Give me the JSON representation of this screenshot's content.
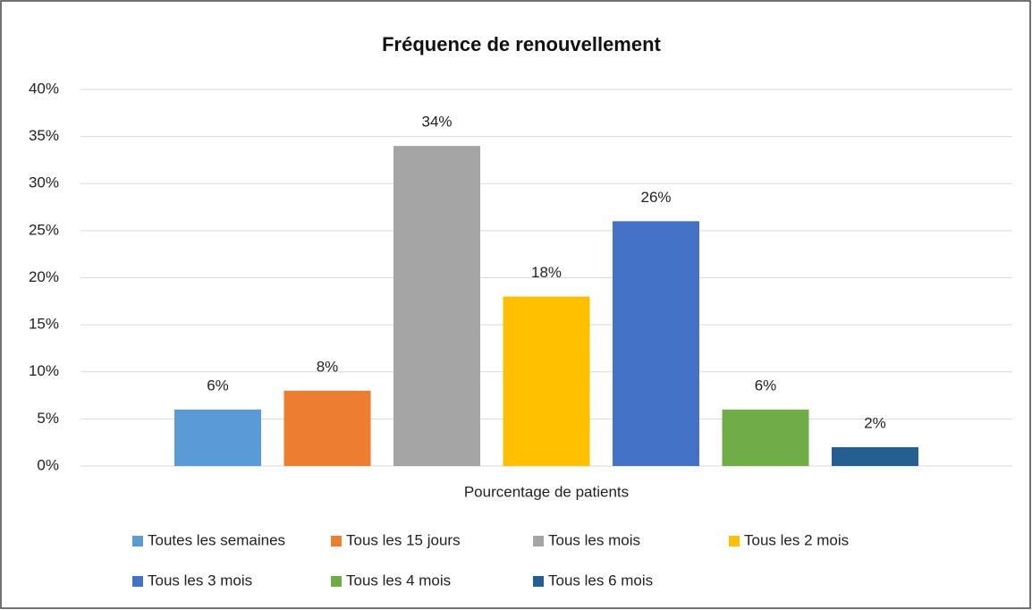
{
  "chart_data": {
    "type": "bar",
    "title": "Fréquence de renouvellement",
    "categories": [
      "Pourcentage de patients"
    ],
    "series": [
      {
        "name": "Toutes les semaines",
        "color": "#5b9bd5",
        "values": [
          6
        ],
        "value_labels": [
          "6%"
        ]
      },
      {
        "name": "Tous les 15 jours",
        "color": "#ed7d31",
        "values": [
          8
        ],
        "value_labels": [
          "8%"
        ]
      },
      {
        "name": "Tous les mois",
        "color": "#a5a5a5",
        "values": [
          34
        ],
        "value_labels": [
          "34%"
        ]
      },
      {
        "name": "Tous les 2 mois",
        "color": "#ffc000",
        "values": [
          18
        ],
        "value_labels": [
          "18%"
        ]
      },
      {
        "name": "Tous les 3 mois",
        "color": "#4472c4",
        "values": [
          26
        ],
        "value_labels": [
          "26%"
        ]
      },
      {
        "name": "Tous les 4 mois",
        "color": "#70ad47",
        "values": [
          6
        ],
        "value_labels": [
          "6%"
        ]
      },
      {
        "name": "Tous les 6 mois",
        "color": "#255e91",
        "values": [
          2
        ],
        "value_labels": [
          "2%"
        ]
      }
    ],
    "ylim": [
      0,
      40
    ],
    "yticks": [
      {
        "value": 0,
        "label": "0%"
      },
      {
        "value": 5,
        "label": "5%"
      },
      {
        "value": 10,
        "label": "10%"
      },
      {
        "value": 15,
        "label": "15%"
      },
      {
        "value": 20,
        "label": "20%"
      },
      {
        "value": 25,
        "label": "25%"
      },
      {
        "value": 30,
        "label": "30%"
      },
      {
        "value": 35,
        "label": "35%"
      },
      {
        "value": 40,
        "label": "40%"
      }
    ],
    "grid": true,
    "legend": "bottom"
  }
}
